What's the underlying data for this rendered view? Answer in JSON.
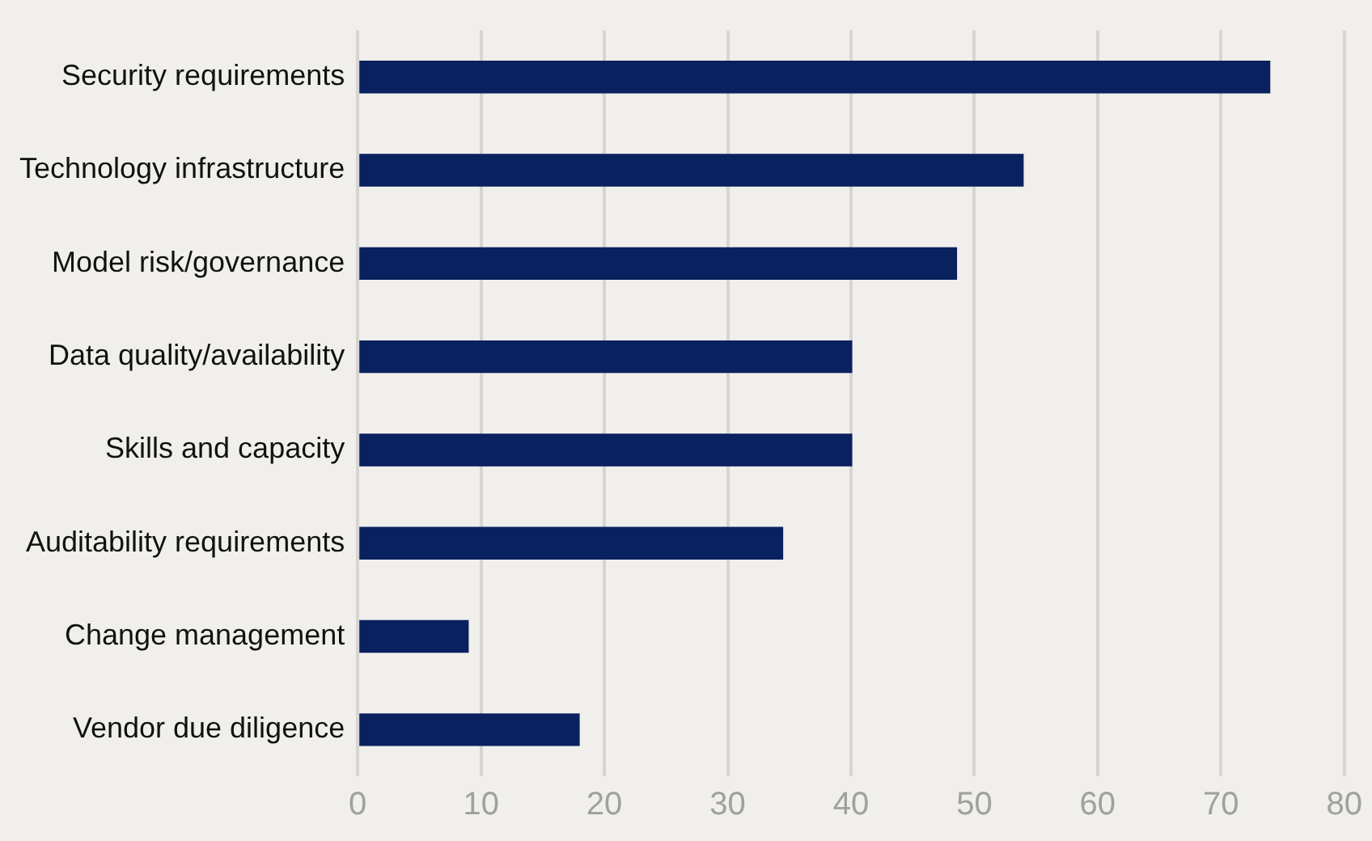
{
  "chart_data": {
    "type": "bar",
    "orientation": "horizontal",
    "categories": [
      "Security requirements",
      "Technology infrastructure",
      "Model risk/governance",
      "Data quality/availability",
      "Skills and capacity",
      "Auditability requirements",
      "Change management",
      "Vendor due diligence"
    ],
    "values": [
      74,
      54,
      48.6,
      40.1,
      40.1,
      34.5,
      9,
      18
    ],
    "color": "#0a2160",
    "xlim": [
      0,
      80
    ],
    "xticks": [
      0,
      10,
      20,
      30,
      40,
      50,
      60,
      70,
      80
    ],
    "grid": "x",
    "legend": false
  }
}
